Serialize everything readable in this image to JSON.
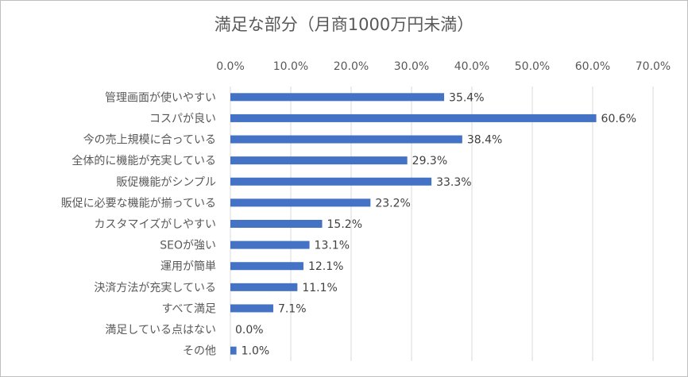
{
  "chart_data": {
    "type": "bar",
    "orientation": "horizontal",
    "title": "満足な部分（月商1000万円未満）",
    "xlabel": "",
    "ylabel": "",
    "xlim": [
      0,
      70
    ],
    "x_ticks": [
      "0.0%",
      "10.0%",
      "20.0%",
      "30.0%",
      "40.0%",
      "50.0%",
      "60.0%",
      "70.0%"
    ],
    "x_tick_values": [
      0,
      10,
      20,
      30,
      40,
      50,
      60,
      70
    ],
    "grid": true,
    "legend": "none",
    "bar_color": "#4472c4",
    "categories": [
      "管理画面が使いやすい",
      "コスパが良い",
      "今の売上規模に合っている",
      "全体的に機能が充実している",
      "販促機能がシンプル",
      "販促に必要な機能が揃っている",
      "カスタマイズがしやすい",
      "SEOが強い",
      "運用が簡単",
      "決済方法が充実している",
      "すべて満足",
      "満足している点はない",
      "その他"
    ],
    "values": [
      35.4,
      60.6,
      38.4,
      29.3,
      33.3,
      23.2,
      15.2,
      13.1,
      12.1,
      11.1,
      7.1,
      0.0,
      1.0
    ],
    "data_labels": [
      "35.4%",
      "60.6%",
      "38.4%",
      "29.3%",
      "33.3%",
      "23.2%",
      "15.2%",
      "13.1%",
      "12.1%",
      "11.1%",
      "7.1%",
      "0.0%",
      "1.0%"
    ]
  }
}
